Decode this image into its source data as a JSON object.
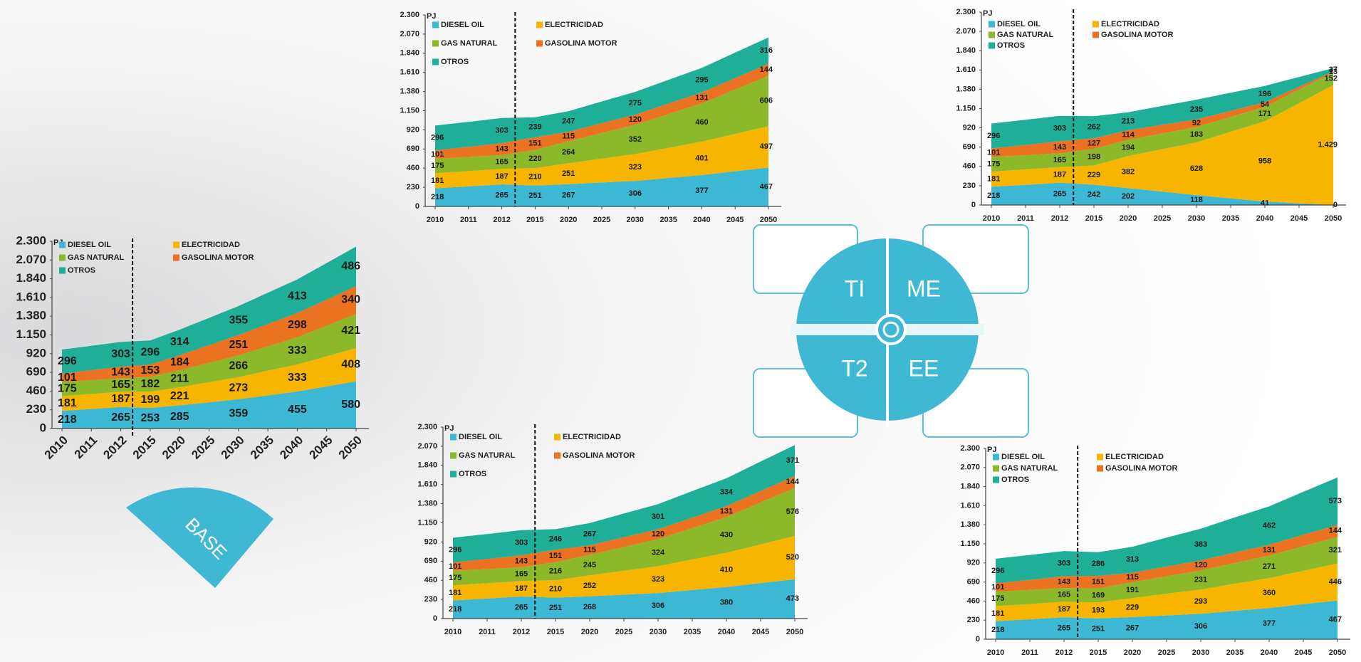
{
  "chart_data": [
    {
      "type": "area",
      "stacked": true,
      "y_label": "PJ",
      "categories": [
        "2010",
        "2011",
        "2012",
        "2015",
        "2020",
        "2025",
        "2030",
        "2035",
        "2040",
        "2045",
        "2050"
      ],
      "ylim": [
        0,
        2300
      ],
      "yticks": [
        0,
        230,
        460,
        690,
        920,
        {
          "value": 1150,
          "label": "1.150"
        },
        {
          "value": 1380,
          "label": "1.380"
        },
        {
          "value": 1610,
          "label": "1.610"
        },
        {
          "value": 1840,
          "label": "1.840"
        },
        {
          "value": 2070,
          "label": "2.070"
        },
        {
          "value": 2300,
          "label": "2.300"
        }
      ],
      "series": [
        {
          "name": "DIESEL OIL",
          "color": "#3cb7d4",
          "values": [
            218,
            240,
            265,
            253,
            285,
            322,
            359,
            407,
            455,
            517,
            580
          ],
          "value_labels": [
            "218",
            null,
            "265",
            "253",
            "285",
            null,
            "359",
            null,
            "455",
            null,
            "580"
          ]
        },
        {
          "name": "ELECTRICIDAD",
          "color": "#f7b500",
          "values": [
            181,
            184,
            187,
            199,
            221,
            247,
            273,
            303,
            333,
            370,
            408
          ],
          "value_labels": [
            "181",
            null,
            "187",
            "199",
            "221",
            null,
            "273",
            null,
            "333",
            null,
            "408"
          ]
        },
        {
          "name": "GAS NATURAL",
          "color": "#8cb92a",
          "values": [
            175,
            170,
            165,
            182,
            211,
            238,
            266,
            300,
            333,
            377,
            421
          ],
          "value_labels": [
            "175",
            null,
            "165",
            "182",
            "211",
            null,
            "266",
            null,
            "333",
            null,
            "421"
          ]
        },
        {
          "name": "GASOLINA MOTOR",
          "color": "#ea7220",
          "values": [
            101,
            122,
            143,
            153,
            184,
            217,
            251,
            275,
            298,
            319,
            340
          ],
          "value_labels": [
            "101",
            null,
            "143",
            "153",
            "184",
            null,
            "251",
            null,
            "298",
            null,
            "340"
          ]
        },
        {
          "name": "OTROS",
          "color": "#1fae97",
          "values": [
            296,
            300,
            303,
            296,
            314,
            335,
            355,
            384,
            413,
            450,
            486
          ],
          "value_labels": [
            "296",
            null,
            "303",
            "296",
            "314",
            null,
            "355",
            null,
            "413",
            null,
            "486"
          ]
        }
      ]
    },
    {
      "type": "area",
      "stacked": true,
      "y_label": "PJ",
      "categories": [
        "2010",
        "2011",
        "2012",
        "2015",
        "2020",
        "2025",
        "2030",
        "2035",
        "2040",
        "2045",
        "2050"
      ],
      "ylim": [
        0,
        2300
      ],
      "yticks": [
        0,
        230,
        460,
        690,
        920,
        {
          "value": 1150,
          "label": "1.150"
        },
        {
          "value": 1380,
          "label": "1.380"
        },
        {
          "value": 1610,
          "label": "1.610"
        },
        {
          "value": 1840,
          "label": "1.840"
        },
        {
          "value": 2070,
          "label": "2.070"
        },
        {
          "value": 2300,
          "label": "2.300"
        }
      ],
      "series": [
        {
          "name": "DIESEL OIL",
          "color": "#3cb7d4",
          "values": [
            218,
            240,
            265,
            251,
            267,
            287,
            306,
            342,
            377,
            422,
            467
          ],
          "value_labels": [
            "218",
            null,
            "265",
            "251",
            "267",
            null,
            "306",
            null,
            "377",
            null,
            "467"
          ]
        },
        {
          "name": "ELECTRICIDAD",
          "color": "#f7b500",
          "values": [
            181,
            184,
            187,
            210,
            251,
            287,
            323,
            362,
            401,
            449,
            497
          ],
          "value_labels": [
            "181",
            null,
            "187",
            "210",
            "251",
            null,
            "323",
            null,
            "401",
            null,
            "497"
          ]
        },
        {
          "name": "GAS NATURAL",
          "color": "#8cb92a",
          "values": [
            175,
            170,
            165,
            220,
            264,
            308,
            352,
            406,
            460,
            533,
            606
          ],
          "value_labels": [
            "175",
            null,
            "165",
            "220",
            "264",
            null,
            "352",
            null,
            "460",
            null,
            "606"
          ]
        },
        {
          "name": "GASOLINA MOTOR",
          "color": "#ea7220",
          "values": [
            101,
            122,
            143,
            151,
            115,
            118,
            120,
            126,
            131,
            138,
            144
          ],
          "value_labels": [
            "101",
            null,
            "143",
            "151",
            "115",
            null,
            "120",
            null,
            "131",
            null,
            "144"
          ]
        },
        {
          "name": "OTROS",
          "color": "#1fae97",
          "values": [
            296,
            300,
            303,
            239,
            247,
            261,
            275,
            285,
            295,
            306,
            316
          ],
          "value_labels": [
            "296",
            null,
            "303",
            "239",
            "247",
            null,
            "275",
            null,
            "295",
            null,
            "316"
          ]
        }
      ]
    },
    {
      "type": "area",
      "stacked": true,
      "y_label": "PJ",
      "categories": [
        "2010",
        "2011",
        "2012",
        "2015",
        "2020",
        "2025",
        "2030",
        "2035",
        "2040",
        "2045",
        "2050"
      ],
      "ylim": [
        0,
        2300
      ],
      "yticks": [
        0,
        230,
        460,
        690,
        920,
        {
          "value": 1150,
          "label": "1.150"
        },
        {
          "value": 1380,
          "label": "1.380"
        },
        {
          "value": 1610,
          "label": "1.610"
        },
        {
          "value": 1840,
          "label": "1.840"
        },
        {
          "value": 2070,
          "label": "2.070"
        },
        {
          "value": 2300,
          "label": "2.300"
        }
      ],
      "series": [
        {
          "name": "DIESEL OIL",
          "color": "#3cb7d4",
          "values": [
            218,
            240,
            265,
            242,
            202,
            160,
            118,
            80,
            41,
            20,
            0
          ],
          "value_labels": [
            "218",
            null,
            "265",
            "242",
            "202",
            null,
            "118",
            null,
            "41",
            null,
            "0"
          ]
        },
        {
          "name": "ELECTRICIDAD",
          "color": "#f7b500",
          "values": [
            181,
            184,
            187,
            229,
            382,
            505,
            628,
            793,
            958,
            1194,
            1429
          ],
          "value_labels": [
            "181",
            null,
            "187",
            "229",
            "382",
            null,
            "628",
            null,
            "958",
            null,
            "1.429"
          ]
        },
        {
          "name": "GAS NATURAL",
          "color": "#8cb92a",
          "values": [
            175,
            170,
            165,
            198,
            194,
            189,
            183,
            177,
            171,
            162,
            152
          ],
          "value_labels": [
            "175",
            null,
            "165",
            "198",
            "194",
            null,
            "183",
            null,
            "171",
            null,
            "152"
          ]
        },
        {
          "name": "GASOLINA MOTOR",
          "color": "#ea7220",
          "values": [
            101,
            122,
            143,
            127,
            114,
            103,
            92,
            73,
            54,
            34,
            13
          ],
          "value_labels": [
            "101",
            null,
            "143",
            "127",
            "114",
            null,
            "92",
            null,
            "54",
            null,
            "13"
          ]
        },
        {
          "name": "OTROS",
          "color": "#1fae97",
          "values": [
            296,
            300,
            303,
            262,
            213,
            224,
            235,
            216,
            196,
            117,
            37
          ],
          "value_labels": [
            "296",
            null,
            "303",
            "262",
            "213",
            null,
            "235",
            null,
            "196",
            null,
            "37"
          ]
        }
      ]
    },
    {
      "type": "area",
      "stacked": true,
      "y_label": "PJ",
      "categories": [
        "2010",
        "2011",
        "2012",
        "2015",
        "2020",
        "2025",
        "2030",
        "2035",
        "2040",
        "2045",
        "2050"
      ],
      "ylim": [
        0,
        2300
      ],
      "yticks": [
        0,
        230,
        460,
        690,
        920,
        {
          "value": 1150,
          "label": "1.150"
        },
        {
          "value": 1380,
          "label": "1.380"
        },
        {
          "value": 1610,
          "label": "1.610"
        },
        {
          "value": 1840,
          "label": "1.840"
        },
        {
          "value": 2070,
          "label": "2.070"
        },
        {
          "value": 2300,
          "label": "2.300"
        }
      ],
      "series": [
        {
          "name": "DIESEL OIL",
          "color": "#3cb7d4",
          "values": [
            218,
            240,
            265,
            251,
            268,
            287,
            306,
            343,
            380,
            427,
            473
          ],
          "value_labels": [
            "218",
            null,
            "265",
            "251",
            "268",
            null,
            "306",
            null,
            "380",
            null,
            "473"
          ]
        },
        {
          "name": "ELECTRICIDAD",
          "color": "#f7b500",
          "values": [
            181,
            184,
            187,
            210,
            252,
            288,
            323,
            367,
            410,
            465,
            520
          ],
          "value_labels": [
            "181",
            null,
            "187",
            "210",
            "252",
            null,
            "323",
            null,
            "410",
            null,
            "520"
          ]
        },
        {
          "name": "GAS NATURAL",
          "color": "#8cb92a",
          "values": [
            175,
            170,
            165,
            216,
            245,
            285,
            324,
            377,
            430,
            503,
            576
          ],
          "value_labels": [
            "175",
            null,
            "165",
            "216",
            "245",
            null,
            "324",
            null,
            "430",
            null,
            "576"
          ]
        },
        {
          "name": "GASOLINA MOTOR",
          "color": "#ea7220",
          "values": [
            101,
            122,
            143,
            151,
            115,
            118,
            120,
            126,
            131,
            138,
            144
          ],
          "value_labels": [
            "101",
            null,
            "143",
            "151",
            "115",
            null,
            "120",
            null,
            "131",
            null,
            "144"
          ]
        },
        {
          "name": "OTROS",
          "color": "#1fae97",
          "values": [
            296,
            300,
            303,
            246,
            267,
            284,
            301,
            318,
            334,
            353,
            371
          ],
          "value_labels": [
            "296",
            null,
            "303",
            "246",
            "267",
            null,
            "301",
            null,
            "334",
            null,
            "371"
          ]
        }
      ]
    },
    {
      "type": "area",
      "stacked": true,
      "y_label": "PJ",
      "categories": [
        "2010",
        "2011",
        "2012",
        "2015",
        "2020",
        "2025",
        "2030",
        "2035",
        "2040",
        "2045",
        "2050"
      ],
      "ylim": [
        0,
        2300
      ],
      "yticks": [
        0,
        230,
        460,
        690,
        920,
        {
          "value": 1150,
          "label": "1.150"
        },
        {
          "value": 1380,
          "label": "1.380"
        },
        {
          "value": 1610,
          "label": "1.610"
        },
        {
          "value": 1840,
          "label": "1.840"
        },
        {
          "value": 2070,
          "label": "2.070"
        },
        {
          "value": 2300,
          "label": "2.300"
        }
      ],
      "series": [
        {
          "name": "DIESEL OIL",
          "color": "#3cb7d4",
          "values": [
            218,
            240,
            265,
            251,
            267,
            287,
            306,
            342,
            377,
            422,
            467
          ],
          "value_labels": [
            "218",
            null,
            "265",
            "251",
            "267",
            null,
            "306",
            null,
            "377",
            null,
            "467"
          ]
        },
        {
          "name": "ELECTRICIDAD",
          "color": "#f7b500",
          "values": [
            181,
            184,
            187,
            193,
            229,
            261,
            293,
            327,
            360,
            403,
            446
          ],
          "value_labels": [
            "181",
            null,
            "187",
            "193",
            "229",
            null,
            "293",
            null,
            "360",
            null,
            "446"
          ]
        },
        {
          "name": "GAS NATURAL",
          "color": "#8cb92a",
          "values": [
            175,
            170,
            165,
            169,
            191,
            211,
            231,
            251,
            271,
            296,
            321
          ],
          "value_labels": [
            "175",
            null,
            "165",
            "169",
            "191",
            null,
            "231",
            null,
            "271",
            null,
            "321"
          ]
        },
        {
          "name": "GASOLINA MOTOR",
          "color": "#ea7220",
          "values": [
            101,
            122,
            143,
            151,
            115,
            118,
            120,
            126,
            131,
            138,
            144
          ],
          "value_labels": [
            "101",
            null,
            "143",
            "151",
            "115",
            null,
            "120",
            null,
            "131",
            null,
            "144"
          ]
        },
        {
          "name": "OTROS",
          "color": "#1fae97",
          "values": [
            296,
            300,
            303,
            286,
            313,
            348,
            383,
            423,
            462,
            518,
            573
          ],
          "value_labels": [
            "296",
            null,
            "303",
            "286",
            "313",
            null,
            "383",
            null,
            "462",
            null,
            "573"
          ]
        }
      ]
    }
  ],
  "diagram": {
    "quadrants": [
      "TI",
      "ME",
      "T2",
      "EE"
    ],
    "base": "BASE"
  }
}
